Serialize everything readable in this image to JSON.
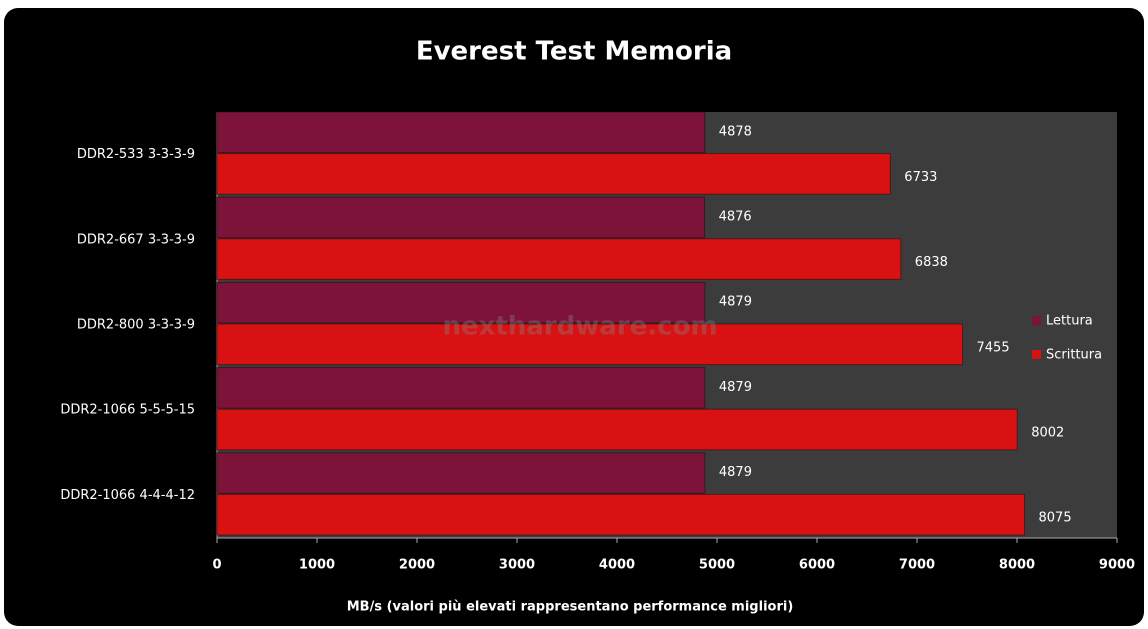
{
  "chart_data": {
    "type": "hbar",
    "title": "Everest Test Memoria",
    "categories": [
      "DDR2-533 3-3-3-9",
      "DDR2-667 3-3-3-9",
      "DDR2-800 3-3-3-9",
      "DDR2-1066 5-5-5-15",
      "DDR2-1066 4-4-4-12"
    ],
    "series": [
      {
        "name": "Lettura",
        "color": "#7d1338",
        "values": [
          4878,
          4876,
          4879,
          4879,
          4879
        ]
      },
      {
        "name": "Scrittura",
        "color": "#d81212",
        "values": [
          6733,
          6838,
          7455,
          8002,
          8075
        ]
      }
    ],
    "xlim": [
      0,
      9000
    ],
    "xticks": [
      0,
      1000,
      2000,
      3000,
      4000,
      5000,
      6000,
      7000,
      8000,
      9000
    ],
    "x_label": "MB/s (valori più elevati rappresentano performance migliori)",
    "watermark": "nexthardware.com",
    "legend": "right"
  }
}
